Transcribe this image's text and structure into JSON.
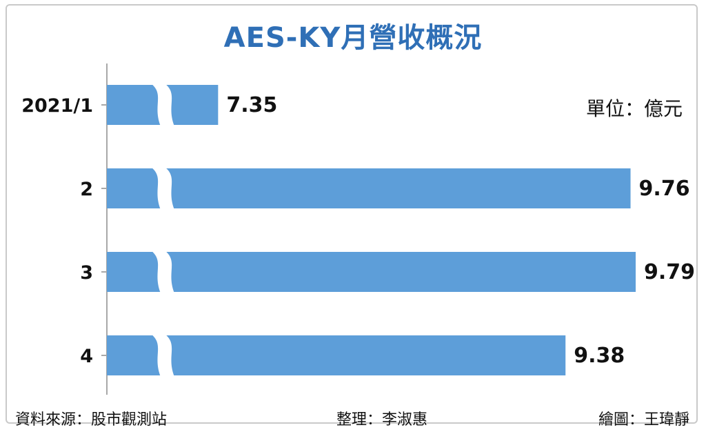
{
  "title": "AES-KY月營收概況",
  "unit_label": "單位：億元",
  "footer": {
    "source": "資料來源：股市觀測站",
    "editor": "整理：李淑惠",
    "drawer": "繪圖：王瑋靜"
  },
  "colors": {
    "bar": "#5d9ed9",
    "title": "#2f6fb6",
    "axis": "#a8a8a8"
  },
  "chart_data": {
    "type": "bar",
    "orientation": "horizontal",
    "categories": [
      "2021/1",
      "2",
      "3",
      "4"
    ],
    "values": [
      7.35,
      9.76,
      9.79,
      9.38
    ],
    "axis_break": true,
    "xlim": [
      6.7,
      9.79
    ],
    "grid": false
  }
}
